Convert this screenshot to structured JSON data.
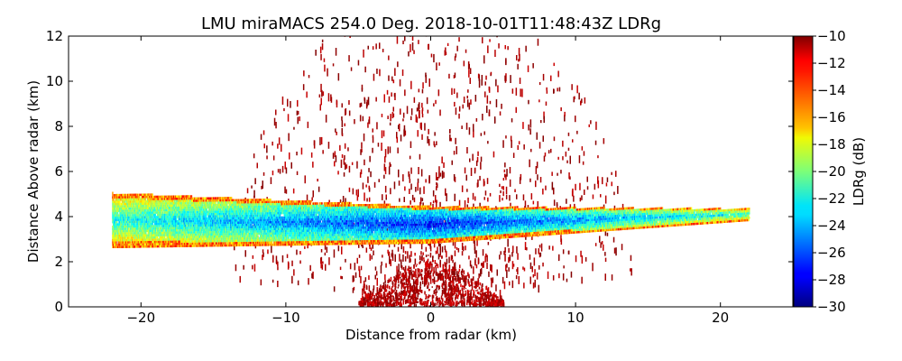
{
  "chart_data": {
    "type": "heatmap",
    "title": "LMU miraMACS 254.0 Deg. 2018-10-01T11:48:43Z  LDRg",
    "xlabel": "Distance from radar (km)",
    "ylabel": "Distance Above radar  (km)",
    "xlim": [
      -25,
      25
    ],
    "ylim": [
      0,
      12
    ],
    "x_ticks": [
      -20,
      -10,
      0,
      10,
      20
    ],
    "x_tick_labels": [
      "−20",
      "−10",
      "0",
      "10",
      "20"
    ],
    "y_ticks": [
      0,
      2,
      4,
      6,
      8,
      10,
      12
    ],
    "y_tick_labels": [
      "0",
      "2",
      "4",
      "6",
      "8",
      "10",
      "12"
    ],
    "scan_elevation_deg": 254.0,
    "colorbar": {
      "label": "LDRg (dB)",
      "range": [
        -30,
        -10
      ],
      "ticks": [
        -10,
        -12,
        -14,
        -16,
        -18,
        -20,
        -22,
        -24,
        -26,
        -28,
        -30
      ],
      "tick_labels": [
        "−10",
        "−12",
        "−14",
        "−16",
        "−18",
        "−20",
        "−22",
        "−24",
        "−26",
        "−28",
        "−30"
      ],
      "colormap": "jet"
    },
    "features": [
      {
        "name": "cloud-layer",
        "x_range": [
          -22,
          22
        ],
        "bottom_km_at_left": 2.6,
        "top_km_at_left": 5.0,
        "bottom_km_at_center": 2.8,
        "top_km_at_center": 4.4,
        "bottom_km_at_right": 3.8,
        "top_km_at_right": 4.3,
        "core_ldr_db": -27,
        "edge_ldr_db": -12
      },
      {
        "name": "sparse-speckle",
        "max_range_km": 13,
        "max_height_km": 12,
        "ldr_db": -10
      },
      {
        "name": "near-radar-clutter",
        "x_range": [
          -5,
          5
        ],
        "height_range_km": [
          0,
          2.5
        ],
        "ldr_db": -10
      }
    ]
  }
}
